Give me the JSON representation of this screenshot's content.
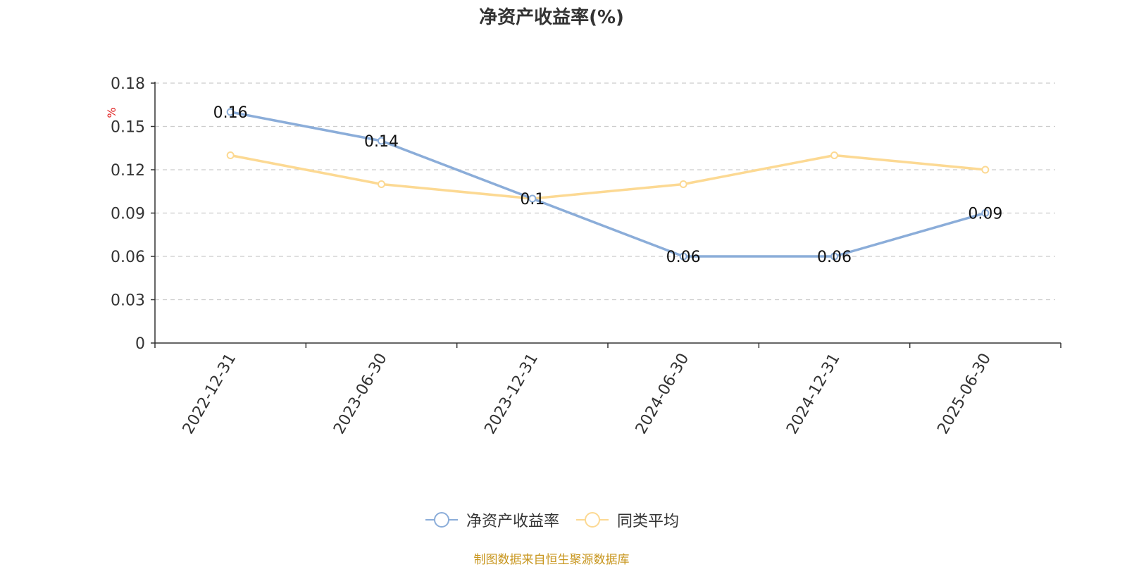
{
  "chart_data": {
    "type": "line",
    "title": "净资产收益率(%)",
    "ylabel": "%",
    "xlabel": "",
    "categories": [
      "2022-12-31",
      "2023-06-30",
      "2023-12-31",
      "2024-06-30",
      "2024-12-31",
      "2025-06-30"
    ],
    "ylim": [
      0,
      0.18
    ],
    "yticks": [
      "0",
      "0.03",
      "0.06",
      "0.09",
      "0.12",
      "0.15",
      "0.18"
    ],
    "grid": true,
    "legend_position": "bottom",
    "series": [
      {
        "name": "净资产收益率",
        "values": [
          0.16,
          0.14,
          0.1,
          0.06,
          0.06,
          0.09
        ],
        "labels": [
          "0.16",
          "0.14",
          "0.1",
          "0.06",
          "0.06",
          "0.09"
        ],
        "color": "#8badd9"
      },
      {
        "name": "同类平均",
        "values": [
          0.13,
          0.11,
          0.1,
          0.11,
          0.13,
          0.12
        ],
        "color": "#fcd993"
      }
    ]
  },
  "source_note": "制图数据来自恒生聚源数据库",
  "colors": {
    "ylabel": "#e02020",
    "axis": "#333333",
    "grid": "#cccccc",
    "source": "#c8961e"
  }
}
